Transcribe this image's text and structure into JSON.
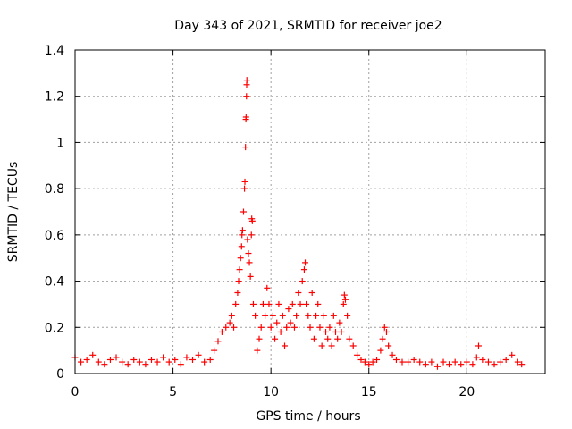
{
  "chart_data": {
    "type": "scatter",
    "title": "Day 343 of 2021, SRMTID for receiver joe2",
    "xlabel": "GPS time / hours",
    "ylabel": "SRMTID / TECUs",
    "xlim": [
      0,
      24
    ],
    "ylim": [
      0,
      1.4
    ],
    "xticks": [
      0,
      5,
      10,
      15,
      20
    ],
    "xtick_labels": [
      "0",
      "5",
      "10",
      "15",
      "20"
    ],
    "yticks": [
      0,
      0.2,
      0.4,
      0.6,
      0.8,
      1,
      1.2,
      1.4
    ],
    "ytick_labels": [
      "0",
      "0.2",
      "0.4",
      "0.6",
      "0.8",
      "1",
      "1.2",
      "1.4"
    ],
    "grid": true,
    "marker": "+",
    "series": [
      {
        "name": "SRMTID",
        "color": "#ff0000",
        "points": [
          [
            0.0,
            0.07
          ],
          [
            0.3,
            0.05
          ],
          [
            0.6,
            0.06
          ],
          [
            0.9,
            0.08
          ],
          [
            1.2,
            0.05
          ],
          [
            1.5,
            0.04
          ],
          [
            1.8,
            0.06
          ],
          [
            2.1,
            0.07
          ],
          [
            2.4,
            0.05
          ],
          [
            2.7,
            0.04
          ],
          [
            3.0,
            0.06
          ],
          [
            3.3,
            0.05
          ],
          [
            3.6,
            0.04
          ],
          [
            3.9,
            0.06
          ],
          [
            4.2,
            0.05
          ],
          [
            4.5,
            0.07
          ],
          [
            4.8,
            0.05
          ],
          [
            5.1,
            0.06
          ],
          [
            5.4,
            0.04
          ],
          [
            5.7,
            0.07
          ],
          [
            6.0,
            0.06
          ],
          [
            6.3,
            0.08
          ],
          [
            6.6,
            0.05
          ],
          [
            6.9,
            0.06
          ],
          [
            7.1,
            0.1
          ],
          [
            7.3,
            0.14
          ],
          [
            7.5,
            0.18
          ],
          [
            7.7,
            0.2
          ],
          [
            7.9,
            0.22
          ],
          [
            8.0,
            0.25
          ],
          [
            8.1,
            0.2
          ],
          [
            8.2,
            0.3
          ],
          [
            8.3,
            0.35
          ],
          [
            8.35,
            0.4
          ],
          [
            8.4,
            0.45
          ],
          [
            8.45,
            0.5
          ],
          [
            8.5,
            0.55
          ],
          [
            8.52,
            0.6
          ],
          [
            8.55,
            0.62
          ],
          [
            8.6,
            0.7
          ],
          [
            8.65,
            0.8
          ],
          [
            8.67,
            0.83
          ],
          [
            8.7,
            0.98
          ],
          [
            8.72,
            1.1
          ],
          [
            8.73,
            1.11
          ],
          [
            8.75,
            1.2
          ],
          [
            8.76,
            1.25
          ],
          [
            8.77,
            1.27
          ],
          [
            8.8,
            0.58
          ],
          [
            8.85,
            0.52
          ],
          [
            8.9,
            0.48
          ],
          [
            8.95,
            0.42
          ],
          [
            9.0,
            0.6
          ],
          [
            9.02,
            0.67
          ],
          [
            9.05,
            0.66
          ],
          [
            9.1,
            0.3
          ],
          [
            9.2,
            0.25
          ],
          [
            9.3,
            0.1
          ],
          [
            9.4,
            0.15
          ],
          [
            9.5,
            0.2
          ],
          [
            9.6,
            0.3
          ],
          [
            9.7,
            0.25
          ],
          [
            9.8,
            0.37
          ],
          [
            9.9,
            0.3
          ],
          [
            10.0,
            0.2
          ],
          [
            10.1,
            0.25
          ],
          [
            10.2,
            0.15
          ],
          [
            10.3,
            0.22
          ],
          [
            10.4,
            0.3
          ],
          [
            10.5,
            0.18
          ],
          [
            10.6,
            0.25
          ],
          [
            10.7,
            0.12
          ],
          [
            10.8,
            0.2
          ],
          [
            10.9,
            0.28
          ],
          [
            11.0,
            0.22
          ],
          [
            11.1,
            0.3
          ],
          [
            11.2,
            0.2
          ],
          [
            11.3,
            0.25
          ],
          [
            11.4,
            0.35
          ],
          [
            11.5,
            0.3
          ],
          [
            11.6,
            0.4
          ],
          [
            11.7,
            0.45
          ],
          [
            11.75,
            0.48
          ],
          [
            11.8,
            0.3
          ],
          [
            11.9,
            0.25
          ],
          [
            12.0,
            0.2
          ],
          [
            12.1,
            0.35
          ],
          [
            12.2,
            0.15
          ],
          [
            12.3,
            0.25
          ],
          [
            12.4,
            0.3
          ],
          [
            12.5,
            0.2
          ],
          [
            12.6,
            0.12
          ],
          [
            12.7,
            0.25
          ],
          [
            12.8,
            0.18
          ],
          [
            12.9,
            0.15
          ],
          [
            13.0,
            0.2
          ],
          [
            13.1,
            0.12
          ],
          [
            13.2,
            0.25
          ],
          [
            13.3,
            0.18
          ],
          [
            13.4,
            0.15
          ],
          [
            13.5,
            0.22
          ],
          [
            13.6,
            0.18
          ],
          [
            13.7,
            0.3
          ],
          [
            13.75,
            0.34
          ],
          [
            13.8,
            0.32
          ],
          [
            13.9,
            0.25
          ],
          [
            14.0,
            0.15
          ],
          [
            14.2,
            0.12
          ],
          [
            14.4,
            0.08
          ],
          [
            14.6,
            0.06
          ],
          [
            14.8,
            0.05
          ],
          [
            15.0,
            0.04
          ],
          [
            15.2,
            0.05
          ],
          [
            15.4,
            0.06
          ],
          [
            15.6,
            0.1
          ],
          [
            15.7,
            0.15
          ],
          [
            15.8,
            0.2
          ],
          [
            15.9,
            0.18
          ],
          [
            16.0,
            0.12
          ],
          [
            16.2,
            0.08
          ],
          [
            16.4,
            0.06
          ],
          [
            16.7,
            0.05
          ],
          [
            17.0,
            0.05
          ],
          [
            17.3,
            0.06
          ],
          [
            17.6,
            0.05
          ],
          [
            17.9,
            0.04
          ],
          [
            18.2,
            0.05
          ],
          [
            18.5,
            0.03
          ],
          [
            18.8,
            0.05
          ],
          [
            19.1,
            0.04
          ],
          [
            19.4,
            0.05
          ],
          [
            19.7,
            0.04
          ],
          [
            20.0,
            0.05
          ],
          [
            20.3,
            0.04
          ],
          [
            20.5,
            0.07
          ],
          [
            20.6,
            0.12
          ],
          [
            20.8,
            0.06
          ],
          [
            21.1,
            0.05
          ],
          [
            21.4,
            0.04
          ],
          [
            21.7,
            0.05
          ],
          [
            22.0,
            0.06
          ],
          [
            22.3,
            0.08
          ],
          [
            22.6,
            0.05
          ],
          [
            22.8,
            0.04
          ]
        ]
      }
    ]
  }
}
